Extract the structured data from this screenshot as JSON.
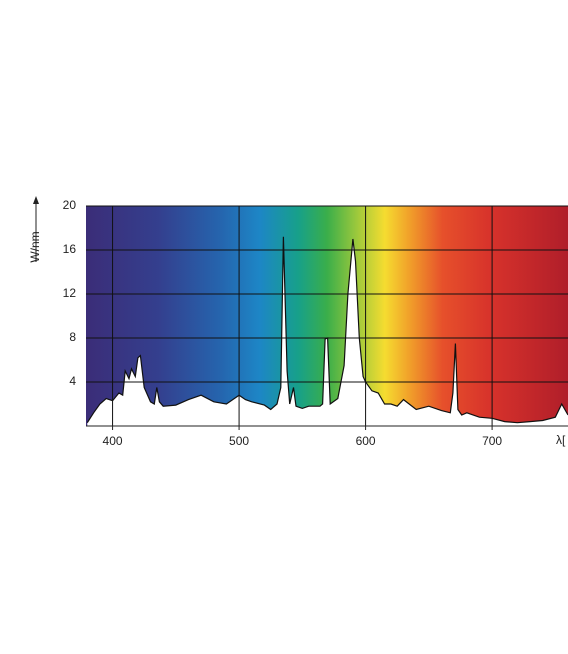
{
  "chart_data": {
    "type": "area",
    "y_label": "W/nm",
    "x_label": "λ[",
    "xlim": [
      379,
      760
    ],
    "ylim": [
      0,
      20
    ],
    "xticks": [
      400,
      500,
      600,
      700
    ],
    "yticks": [
      4,
      8,
      12,
      16,
      20
    ],
    "grid": true,
    "color": "#111111",
    "x": [
      380,
      385,
      390,
      395,
      400,
      405,
      408,
      410,
      413,
      415,
      418,
      420,
      422,
      425,
      430,
      433,
      435,
      437,
      440,
      450,
      460,
      470,
      480,
      490,
      500,
      505,
      510,
      520,
      525,
      530,
      533,
      535,
      538,
      540,
      543,
      545,
      550,
      555,
      560,
      564,
      566,
      568,
      570,
      572,
      578,
      583,
      586,
      590,
      592,
      595,
      598,
      600,
      605,
      610,
      615,
      620,
      625,
      630,
      640,
      650,
      660,
      667,
      669,
      671,
      673,
      676,
      680,
      690,
      700,
      710,
      720,
      730,
      740,
      750,
      755,
      760
    ],
    "values": [
      0.3,
      1.2,
      2.0,
      2.5,
      2.3,
      3.0,
      2.8,
      5.0,
      4.3,
      5.2,
      4.5,
      6.2,
      6.4,
      3.5,
      2.2,
      2.0,
      3.5,
      2.2,
      1.8,
      1.9,
      2.4,
      2.8,
      2.2,
      2.0,
      2.8,
      2.4,
      2.2,
      1.9,
      1.5,
      2.0,
      3.5,
      17.2,
      5.0,
      2.0,
      3.5,
      1.8,
      1.6,
      1.8,
      1.8,
      1.8,
      2.0,
      7.9,
      8.0,
      2.0,
      2.5,
      5.5,
      12.0,
      17.0,
      15.0,
      8.0,
      4.5,
      4.0,
      3.2,
      3.0,
      2.0,
      2.0,
      1.8,
      2.4,
      1.5,
      1.8,
      1.4,
      1.2,
      3.0,
      7.5,
      1.5,
      1.0,
      1.2,
      0.8,
      0.7,
      0.4,
      0.3,
      0.4,
      0.5,
      0.8,
      2.0,
      1.0
    ]
  }
}
